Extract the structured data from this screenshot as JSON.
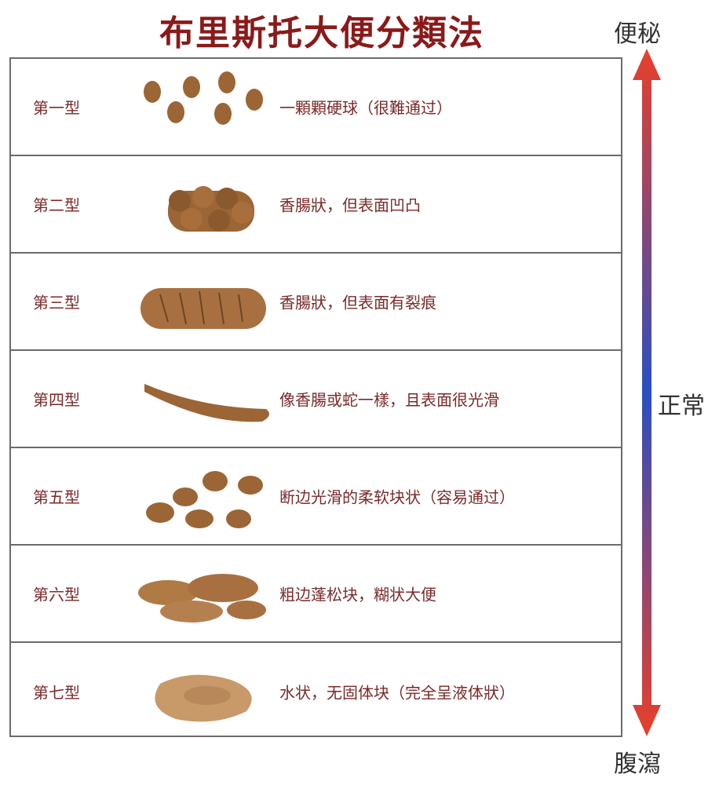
{
  "title": "布里斯托大便分類法",
  "scale": {
    "top": "便秘",
    "middle": "正常",
    "bottom": "腹瀉",
    "colors": {
      "top": "#e8402a",
      "middle": "#2a4fc0",
      "bottom": "#e8402a"
    }
  },
  "stool_color": "#9b6536",
  "rows": [
    {
      "label": "第一型",
      "desc": "一顆顆硬球（很難通过）",
      "icon": "hard-lumps"
    },
    {
      "label": "第二型",
      "desc": "香腸狀，但表面凹凸",
      "icon": "lumpy-sausage"
    },
    {
      "label": "第三型",
      "desc": "香腸狀，但表面有裂痕",
      "icon": "cracked-sausage"
    },
    {
      "label": "第四型",
      "desc": "像香腸或蛇一樣，且表面很光滑",
      "icon": "smooth-snake"
    },
    {
      "label": "第五型",
      "desc": "断边光滑的柔软块状（容易通过）",
      "icon": "soft-blobs"
    },
    {
      "label": "第六型",
      "desc": "粗边蓬松块，糊状大便",
      "icon": "mushy-pieces"
    },
    {
      "label": "第七型",
      "desc": "水状，无固体块（完全呈液体狀）",
      "icon": "watery"
    }
  ]
}
